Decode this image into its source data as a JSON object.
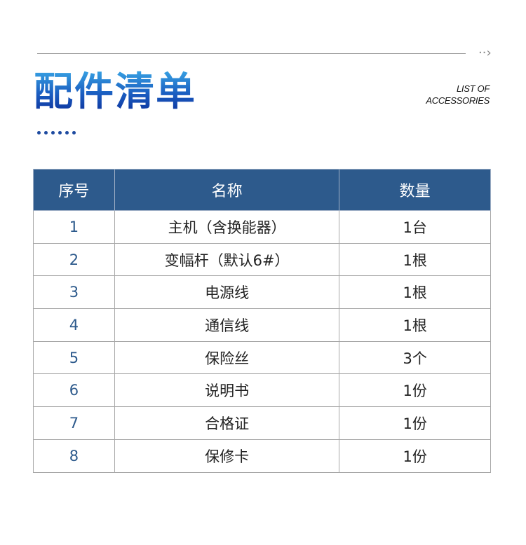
{
  "header": {
    "title": "配件清单",
    "subtitle_line1": "LIST OF",
    "subtitle_line2": "ACCESSORIES",
    "arrow_icon": "chevron-right-dotted",
    "accent": "#1d4aa0"
  },
  "table": {
    "header_color": "#2d5a8c",
    "columns": [
      "序号",
      "名称",
      "数量"
    ],
    "rows": [
      [
        "1",
        "主机（含换能器）",
        "1台"
      ],
      [
        "2",
        "变幅杆（默认6#）",
        "1根"
      ],
      [
        "3",
        "电源线",
        "1根"
      ],
      [
        "4",
        "通信线",
        "1根"
      ],
      [
        "5",
        "保险丝",
        "3个"
      ],
      [
        "6",
        "说明书",
        "1份"
      ],
      [
        "7",
        "合格证",
        "1份"
      ],
      [
        "8",
        "保修卡",
        "1份"
      ]
    ]
  }
}
